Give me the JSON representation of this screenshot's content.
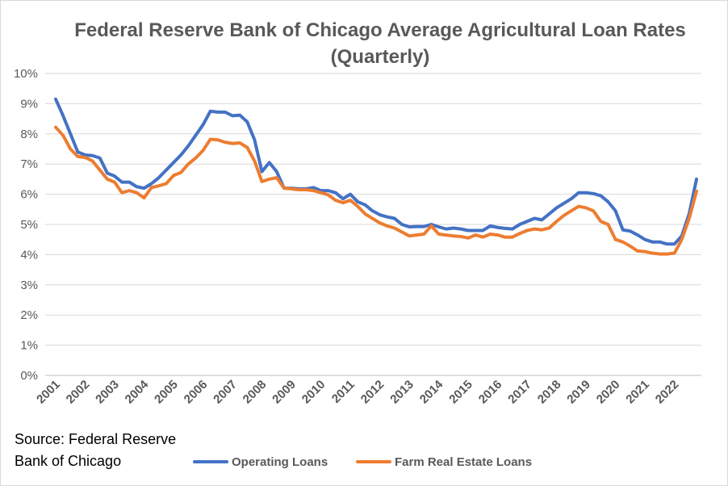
{
  "chart_data": {
    "type": "line",
    "title": "Federal Reserve Bank of Chicago Average Agricultural Loan Rates (Quarterly)",
    "source": [
      "Source: Federal Reserve",
      "Bank of Chicago"
    ],
    "categories": [
      "2001",
      null,
      null,
      null,
      "2002",
      null,
      null,
      null,
      "2003",
      null,
      null,
      null,
      "2004",
      null,
      null,
      null,
      "2005",
      null,
      null,
      null,
      "2006",
      null,
      null,
      null,
      "2007",
      null,
      null,
      null,
      "2008",
      null,
      null,
      null,
      "2009",
      null,
      null,
      null,
      "2010",
      null,
      null,
      null,
      "2011",
      null,
      null,
      null,
      "2012",
      null,
      null,
      null,
      "2013",
      null,
      null,
      null,
      "2014",
      null,
      null,
      null,
      "2015",
      null,
      null,
      null,
      "2016",
      null,
      null,
      null,
      "2017",
      null,
      null,
      null,
      "2018",
      null,
      null,
      null,
      "2019",
      null,
      null,
      null,
      "2020",
      null,
      null,
      null,
      "2021",
      null,
      null,
      null,
      "2022",
      null,
      null,
      null
    ],
    "series": [
      {
        "name": "Operating Loans",
        "color": "#4472c4",
        "values": [
          9.15,
          8.6,
          8.0,
          7.4,
          7.3,
          7.28,
          7.2,
          6.7,
          6.6,
          6.4,
          6.4,
          6.25,
          6.2,
          6.35,
          6.55,
          6.8,
          7.05,
          7.3,
          7.6,
          7.95,
          8.3,
          8.75,
          8.72,
          8.72,
          8.6,
          8.62,
          8.4,
          7.8,
          6.75,
          7.05,
          6.75,
          6.2,
          6.2,
          6.18,
          6.18,
          6.22,
          6.12,
          6.12,
          6.05,
          5.85,
          6.0,
          5.75,
          5.65,
          5.45,
          5.32,
          5.25,
          5.2,
          5.0,
          4.92,
          4.93,
          4.93,
          5.0,
          4.92,
          4.85,
          4.88,
          4.85,
          4.8,
          4.8,
          4.8,
          4.95,
          4.9,
          4.87,
          4.85,
          5.0,
          5.1,
          5.2,
          5.15,
          5.35,
          5.55,
          5.7,
          5.85,
          6.05,
          6.05,
          6.02,
          5.95,
          5.75,
          5.45,
          4.82,
          4.78,
          4.65,
          4.5,
          4.42,
          4.42,
          4.35,
          4.35,
          4.62,
          5.35,
          6.5
        ]
      },
      {
        "name": "Farm Real Estate Loans",
        "color": "#ed7d31",
        "values": [
          8.22,
          7.95,
          7.5,
          7.25,
          7.22,
          7.1,
          6.8,
          6.5,
          6.4,
          6.05,
          6.12,
          6.05,
          5.88,
          6.22,
          6.28,
          6.35,
          6.62,
          6.72,
          7.0,
          7.2,
          7.45,
          7.82,
          7.8,
          7.72,
          7.68,
          7.7,
          7.55,
          7.1,
          6.42,
          6.5,
          6.55,
          6.2,
          6.18,
          6.15,
          6.15,
          6.12,
          6.05,
          5.98,
          5.8,
          5.72,
          5.8,
          5.6,
          5.35,
          5.2,
          5.05,
          4.95,
          4.88,
          4.75,
          4.62,
          4.65,
          4.68,
          4.95,
          4.68,
          4.65,
          4.62,
          4.6,
          4.55,
          4.65,
          4.58,
          4.68,
          4.65,
          4.58,
          4.58,
          4.7,
          4.8,
          4.85,
          4.82,
          4.88,
          5.1,
          5.3,
          5.45,
          5.6,
          5.55,
          5.45,
          5.1,
          5.0,
          4.5,
          4.42,
          4.28,
          4.12,
          4.1,
          4.05,
          4.02,
          4.02,
          4.05,
          4.5,
          5.2,
          6.1
        ]
      }
    ],
    "ylim": [
      0,
      10
    ],
    "yticks": [
      {
        "value": 0,
        "label": "0%"
      },
      {
        "value": 1,
        "label": "1%"
      },
      {
        "value": 2,
        "label": "2%"
      },
      {
        "value": 3,
        "label": "3%"
      },
      {
        "value": 4,
        "label": "4%"
      },
      {
        "value": 5,
        "label": "5%"
      },
      {
        "value": 6,
        "label": "6%"
      },
      {
        "value": 7,
        "label": "7%"
      },
      {
        "value": 8,
        "label": "8%"
      },
      {
        "value": 9,
        "label": "9%"
      },
      {
        "value": 10,
        "label": "10%"
      }
    ],
    "grid": true,
    "legend": "bottom"
  }
}
